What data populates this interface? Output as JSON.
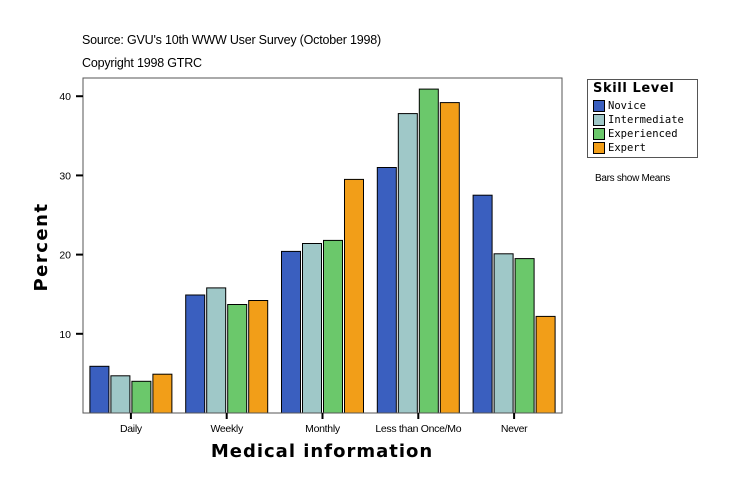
{
  "header": {
    "source": "Source: GVU's 10th WWW User Survey (October 1998)",
    "copyright": "Copyright 1998 GTRC"
  },
  "note": "Bars show Means",
  "chart_data": {
    "type": "bar",
    "title": "",
    "xlabel": "Medical information",
    "ylabel": "Percent",
    "ylim": [
      0,
      42.3
    ],
    "yticks": [
      10,
      20,
      30,
      40
    ],
    "grid": false,
    "legend_title": "Skill Level",
    "legend_position": "right",
    "categories": [
      "Daily",
      "Weekly",
      "Monthly",
      "Less than Once/Mo",
      "Never"
    ],
    "series": [
      {
        "name": "Novice",
        "color": "#3a5fbf",
        "values": [
          5.9,
          14.9,
          20.4,
          31.0,
          27.5
        ]
      },
      {
        "name": "Intermediate",
        "color": "#9fc8c8",
        "values": [
          4.7,
          15.8,
          21.4,
          37.8,
          20.1
        ]
      },
      {
        "name": "Experienced",
        "color": "#6bc86b",
        "values": [
          4.0,
          13.7,
          21.8,
          40.9,
          19.5
        ]
      },
      {
        "name": "Expert",
        "color": "#f29e18",
        "values": [
          4.9,
          14.2,
          29.5,
          39.2,
          12.2
        ]
      }
    ]
  }
}
